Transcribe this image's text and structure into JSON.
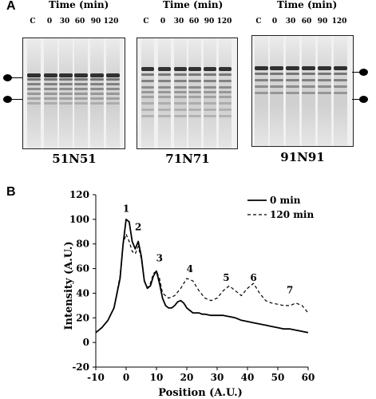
{
  "panel_a": {
    "letter": "A",
    "time_title": "Time (min)",
    "lane_labels": [
      "C",
      "0",
      "30",
      "60",
      "90",
      "120"
    ],
    "gels": [
      {
        "name": "51N51",
        "markers": 2
      },
      {
        "name": "71N71",
        "markers": 0
      },
      {
        "name": "91N91",
        "markers": 2
      }
    ]
  },
  "panel_b": {
    "letter": "B",
    "peak_labels": [
      "1",
      "2",
      "3",
      "4",
      "5",
      "6",
      "7"
    ]
  },
  "chart_data": {
    "type": "line",
    "xlabel": "Position (A.U.)",
    "ylabel": "Intensity (A.U.)",
    "xlim": [
      -10,
      60
    ],
    "ylim": [
      -20,
      120
    ],
    "xticks": [
      -10,
      0,
      10,
      20,
      30,
      40,
      50,
      60
    ],
    "yticks": [
      -20,
      0,
      20,
      40,
      60,
      80,
      100,
      120
    ],
    "legend_position": "top-right",
    "series": [
      {
        "name": "0 min",
        "style": "solid",
        "x": [
          -10,
          -8,
          -6,
          -4,
          -2,
          -1,
          0,
          1,
          2,
          3,
          4,
          5,
          6,
          7,
          8,
          9,
          10,
          11,
          12,
          13,
          14,
          15,
          16,
          17,
          18,
          19,
          20,
          21,
          22,
          23,
          24,
          25,
          26,
          28,
          30,
          32,
          34,
          36,
          38,
          40,
          42,
          44,
          46,
          48,
          50,
          52,
          54,
          56,
          58,
          60
        ],
        "y": [
          8,
          12,
          18,
          28,
          52,
          80,
          100,
          98,
          82,
          76,
          82,
          70,
          50,
          44,
          46,
          54,
          58,
          48,
          36,
          30,
          28,
          28,
          30,
          33,
          34,
          32,
          28,
          26,
          24,
          24,
          24,
          23,
          23,
          22,
          22,
          22,
          21,
          20,
          18,
          17,
          16,
          15,
          14,
          13,
          12,
          11,
          11,
          10,
          9,
          8
        ]
      },
      {
        "name": "120 min",
        "style": "dashed",
        "x": [
          -10,
          -8,
          -6,
          -4,
          -2,
          -1,
          0,
          1,
          2,
          3,
          4,
          5,
          6,
          7,
          8,
          9,
          10,
          11,
          12,
          14,
          16,
          18,
          20,
          22,
          24,
          26,
          28,
          30,
          32,
          34,
          36,
          38,
          40,
          42,
          44,
          46,
          48,
          50,
          52,
          54,
          56,
          58,
          60
        ],
        "y": [
          8,
          12,
          18,
          28,
          54,
          80,
          88,
          82,
          74,
          72,
          78,
          68,
          50,
          44,
          48,
          56,
          58,
          52,
          40,
          36,
          38,
          44,
          52,
          50,
          42,
          36,
          34,
          36,
          42,
          46,
          42,
          38,
          44,
          48,
          40,
          34,
          32,
          31,
          30,
          30,
          32,
          30,
          24
        ]
      }
    ],
    "peak_positions": [
      {
        "label": "1",
        "x": 0,
        "y": 106
      },
      {
        "label": "2",
        "x": 4,
        "y": 91
      },
      {
        "label": "3",
        "x": 11,
        "y": 66
      },
      {
        "label": "4",
        "x": 21,
        "y": 57
      },
      {
        "label": "5",
        "x": 33,
        "y": 50
      },
      {
        "label": "6",
        "x": 42,
        "y": 50
      },
      {
        "label": "7",
        "x": 54,
        "y": 40
      }
    ]
  }
}
